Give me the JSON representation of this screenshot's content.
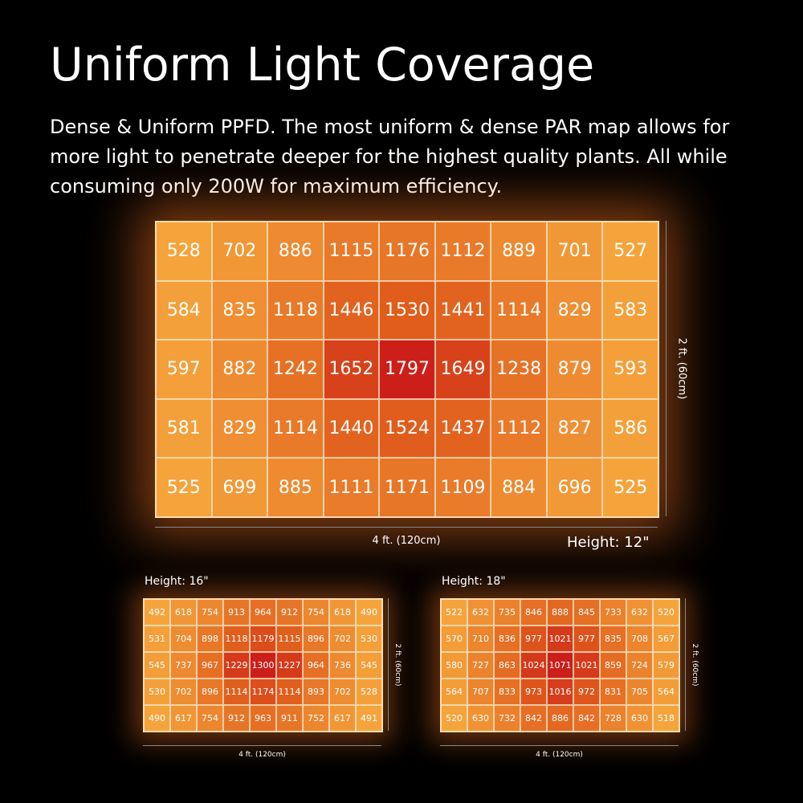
{
  "title": "Uniform Light Coverage",
  "description": "Dense & Uniform PPFD.  The most uniform & dense PAR map allows for more light to penetrate deeper for the highest quality plants.  All while consuming only 200W for maximum efficiency.",
  "colors": {
    "background": "#000000",
    "scale_low": "#f5a43c",
    "scale_high": "#cc1f1a"
  },
  "chart_data": [
    {
      "type": "heatmap",
      "title": "Height: 12\"",
      "xlabel": "4 ft. (120cm)",
      "ylabel": "2 ft. (60cm)",
      "values": [
        [
          528,
          702,
          886,
          1115,
          1176,
          1112,
          889,
          701,
          527
        ],
        [
          584,
          835,
          1118,
          1446,
          1530,
          1441,
          1114,
          829,
          583
        ],
        [
          597,
          882,
          1242,
          1652,
          1797,
          1649,
          1238,
          879,
          593
        ],
        [
          581,
          829,
          1114,
          1440,
          1524,
          1437,
          1112,
          827,
          586
        ],
        [
          525,
          699,
          885,
          1111,
          1171,
          1109,
          884,
          696,
          525
        ]
      ]
    },
    {
      "type": "heatmap",
      "title": "Height: 16\"",
      "xlabel": "4 ft. (120cm)",
      "ylabel": "2 ft. (60cm)",
      "values": [
        [
          492,
          618,
          754,
          913,
          964,
          912,
          754,
          618,
          490
        ],
        [
          531,
          704,
          898,
          1118,
          1179,
          1115,
          896,
          702,
          530
        ],
        [
          545,
          737,
          967,
          1229,
          1300,
          1227,
          964,
          736,
          545
        ],
        [
          530,
          702,
          896,
          1114,
          1174,
          1114,
          893,
          702,
          528
        ],
        [
          490,
          617,
          754,
          912,
          963,
          911,
          752,
          617,
          491
        ]
      ]
    },
    {
      "type": "heatmap",
      "title": "Height: 18\"",
      "xlabel": "4 ft. (120cm)",
      "ylabel": "2 ft. (60cm)",
      "values": [
        [
          522,
          632,
          735,
          846,
          888,
          845,
          733,
          632,
          520
        ],
        [
          570,
          710,
          836,
          977,
          1021,
          977,
          835,
          708,
          567
        ],
        [
          580,
          727,
          863,
          1024,
          1071,
          1021,
          859,
          724,
          579
        ],
        [
          564,
          707,
          833,
          973,
          1016,
          972,
          831,
          705,
          564
        ],
        [
          520,
          630,
          732,
          842,
          886,
          842,
          728,
          630,
          518
        ]
      ]
    }
  ]
}
